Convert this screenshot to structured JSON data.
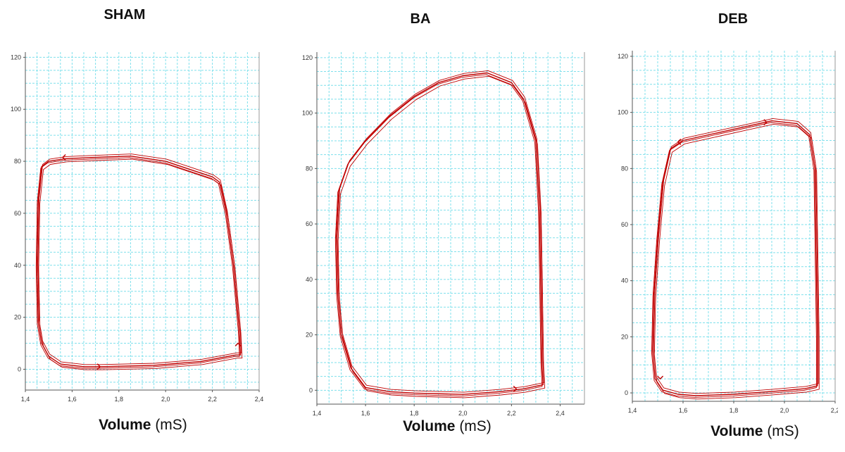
{
  "chart_data": [
    {
      "type": "line",
      "title": "SHAM",
      "xlabel_bold": "Volume",
      "xlabel_unit": "(mS)",
      "xlim": [
        1.4,
        2.4
      ],
      "ylim": [
        -8,
        122
      ],
      "x_ticks": [
        "1,4",
        "1,6",
        "1,8",
        "2,0",
        "2,2",
        "2,4"
      ],
      "x_tick_values": [
        1.4,
        1.6,
        1.8,
        2.0,
        2.2,
        2.4
      ],
      "y_ticks": [
        "0",
        "20",
        "40",
        "60",
        "80",
        "100",
        "120"
      ],
      "y_tick_values": [
        0,
        20,
        40,
        60,
        80,
        100,
        120
      ],
      "grid": true,
      "series_color": "#c00000",
      "loop": [
        [
          1.72,
          1
        ],
        [
          1.95,
          1.5
        ],
        [
          2.15,
          3
        ],
        [
          2.3,
          5.5
        ],
        [
          2.32,
          5.5
        ],
        [
          2.315,
          15
        ],
        [
          2.29,
          40
        ],
        [
          2.26,
          60
        ],
        [
          2.23,
          72
        ],
        [
          2.2,
          74
        ],
        [
          2.1,
          77
        ],
        [
          2.0,
          80
        ],
        [
          1.85,
          82
        ],
        [
          1.7,
          81.5
        ],
        [
          1.57,
          81
        ],
        [
          1.5,
          80
        ],
        [
          1.47,
          78
        ],
        [
          1.455,
          65
        ],
        [
          1.45,
          40
        ],
        [
          1.455,
          18
        ],
        [
          1.47,
          10
        ],
        [
          1.5,
          5
        ],
        [
          1.55,
          2
        ],
        [
          1.65,
          1
        ],
        [
          1.72,
          1
        ]
      ],
      "arrows": [
        {
          "x": 1.72,
          "y": 1,
          "dir": "right"
        },
        {
          "x": 2.31,
          "y": 10,
          "dir": "up"
        },
        {
          "x": 1.56,
          "y": 81.5,
          "dir": "left"
        }
      ]
    },
    {
      "type": "line",
      "title": "BA",
      "xlabel_bold": "Volume",
      "xlabel_unit": "(mS)",
      "xlim": [
        1.4,
        2.5
      ],
      "ylim": [
        -5,
        122
      ],
      "x_ticks": [
        "1,4",
        "1,6",
        "1,8",
        "2,0",
        "2,2",
        "2,4"
      ],
      "x_tick_values": [
        1.4,
        1.6,
        1.8,
        2.0,
        2.2,
        2.4
      ],
      "y_ticks": [
        "0",
        "20",
        "40",
        "60",
        "80",
        "100",
        "120"
      ],
      "y_tick_values": [
        0,
        20,
        40,
        60,
        80,
        100,
        120
      ],
      "grid": true,
      "series_color": "#c00000",
      "loop": [
        [
          1.8,
          -1
        ],
        [
          2.0,
          -1.5
        ],
        [
          2.15,
          -0.5
        ],
        [
          2.25,
          0.5
        ],
        [
          2.33,
          2
        ],
        [
          2.325,
          10
        ],
        [
          2.32,
          40
        ],
        [
          2.315,
          65
        ],
        [
          2.3,
          90
        ],
        [
          2.25,
          105
        ],
        [
          2.2,
          111
        ],
        [
          2.1,
          114.5
        ],
        [
          2.0,
          113.5
        ],
        [
          1.9,
          111
        ],
        [
          1.8,
          106
        ],
        [
          1.7,
          99
        ],
        [
          1.6,
          90
        ],
        [
          1.53,
          82
        ],
        [
          1.49,
          72
        ],
        [
          1.48,
          55
        ],
        [
          1.485,
          35
        ],
        [
          1.5,
          20
        ],
        [
          1.54,
          8
        ],
        [
          1.6,
          1
        ],
        [
          1.7,
          -0.5
        ],
        [
          1.8,
          -1
        ]
      ],
      "arrows": [
        {
          "x": 2.22,
          "y": 0.5,
          "dir": "right"
        }
      ]
    },
    {
      "type": "line",
      "title": "DEB",
      "xlabel_bold": "Volume",
      "xlabel_unit": "(mS)",
      "xlim": [
        1.4,
        2.2
      ],
      "ylim": [
        -3,
        122
      ],
      "x_ticks": [
        "1,4",
        "1,6",
        "1,8",
        "2,0",
        "2,2"
      ],
      "x_tick_values": [
        1.4,
        1.6,
        1.8,
        2.0,
        2.2
      ],
      "y_ticks": [
        "0",
        "20",
        "40",
        "60",
        "80",
        "100",
        "120"
      ],
      "y_tick_values": [
        0,
        20,
        40,
        60,
        80,
        100,
        120
      ],
      "grid": true,
      "series_color": "#c00000",
      "loop": [
        [
          1.65,
          -1
        ],
        [
          1.8,
          -0.5
        ],
        [
          1.95,
          0.5
        ],
        [
          2.08,
          1.5
        ],
        [
          2.13,
          2.5
        ],
        [
          2.13,
          20
        ],
        [
          2.125,
          50
        ],
        [
          2.12,
          80
        ],
        [
          2.1,
          92
        ],
        [
          2.05,
          96
        ],
        [
          1.95,
          97
        ],
        [
          1.85,
          95
        ],
        [
          1.7,
          92
        ],
        [
          1.6,
          90
        ],
        [
          1.55,
          87
        ],
        [
          1.52,
          75
        ],
        [
          1.5,
          55
        ],
        [
          1.485,
          35
        ],
        [
          1.48,
          15
        ],
        [
          1.49,
          5
        ],
        [
          1.52,
          1
        ],
        [
          1.58,
          -0.5
        ],
        [
          1.65,
          -1
        ]
      ],
      "arrows": [
        {
          "x": 1.51,
          "y": 5,
          "dir": "down"
        },
        {
          "x": 1.58,
          "y": 89.5,
          "dir": "left"
        },
        {
          "x": 1.93,
          "y": 96.5,
          "dir": "right"
        }
      ]
    }
  ]
}
